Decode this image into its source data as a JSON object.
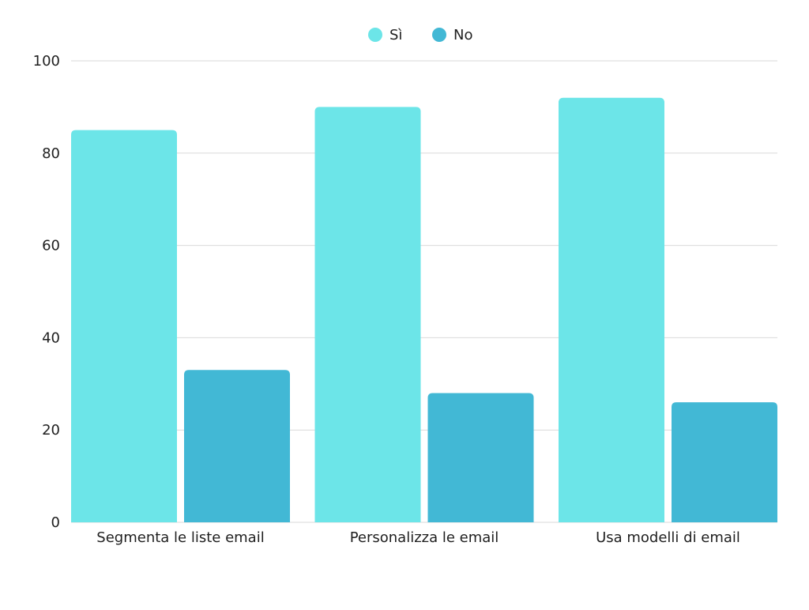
{
  "chart_data": {
    "type": "bar",
    "title": "",
    "xlabel": "",
    "ylabel": "",
    "categories": [
      "Segmenta le liste email",
      "Personalizza le email",
      "Usa modelli di email"
    ],
    "series": [
      {
        "name": "Sì",
        "values": [
          85,
          90,
          92
        ],
        "color": "#6ce5e8"
      },
      {
        "name": "No",
        "values": [
          33,
          28,
          26
        ],
        "color": "#42b8d5"
      }
    ],
    "ylim": [
      0,
      100
    ],
    "yticks": [
      0,
      20,
      40,
      60,
      80,
      100
    ],
    "grid": true,
    "legend_position": "top-center"
  }
}
